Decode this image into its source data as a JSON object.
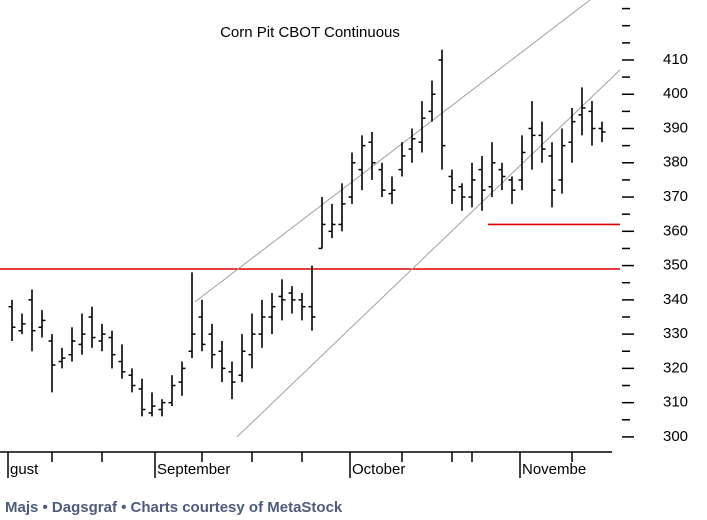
{
  "chart_data": {
    "type": "ohlc",
    "title": "Corn Pit CBOT Continuous",
    "footer": "Majs • Dagsgraf • Charts courtesy of MetaStock",
    "xlim": [
      -1.2,
      60.8
    ],
    "ylim": [
      295.6,
      427.5
    ],
    "yticks": [
      300,
      310,
      320,
      330,
      340,
      350,
      360,
      370,
      380,
      390,
      400,
      410
    ],
    "yminor_ticks": [
      305,
      315,
      325,
      335,
      345,
      355,
      365,
      375,
      385,
      395,
      405,
      415,
      420,
      425
    ],
    "xticks": [
      4,
      9,
      19,
      24,
      29,
      39,
      44,
      46,
      56
    ],
    "xlabels": [
      {
        "value": -0.4,
        "label": "gust"
      },
      {
        "value": 14.3,
        "label": "September"
      },
      {
        "value": 33.8,
        "label": "October"
      },
      {
        "value": 50.8,
        "label": "Novembe"
      }
    ],
    "color": "#000000",
    "series": [
      {
        "open": [
          338,
          331,
          340,
          332,
          328,
          322,
          324,
          327,
          335,
          328,
          329,
          322,
          318,
          314,
          307,
          308,
          310,
          316,
          325,
          335,
          330,
          325,
          319,
          318,
          324,
          330,
          335,
          341,
          342,
          340,
          338,
          355,
          360,
          362,
          370,
          378,
          386,
          378,
          371,
          378,
          384,
          386,
          395,
          410,
          376,
          373,
          370,
          378,
          373,
          378,
          375,
          375,
          390,
          388,
          382,
          375,
          386,
          394,
          395,
          390
        ],
        "high": [
          340,
          336,
          343,
          337,
          330,
          326,
          332,
          336,
          338,
          333,
          331,
          327,
          320,
          317,
          313,
          311,
          318,
          322,
          348,
          340,
          333,
          328,
          322,
          330,
          336,
          340,
          342,
          346,
          344,
          342,
          350,
          370,
          368,
          374,
          383,
          388,
          389,
          380,
          376,
          386,
          390,
          398,
          404,
          413,
          378,
          374,
          380,
          382,
          386,
          380,
          376,
          388,
          398,
          392,
          386,
          390,
          396,
          402,
          398,
          392
        ],
        "low": [
          328,
          330,
          325,
          329,
          313,
          320,
          322,
          324,
          326,
          325,
          320,
          317,
          313,
          306,
          306,
          306,
          309,
          312,
          323,
          325,
          320,
          316,
          311,
          316,
          320,
          326,
          330,
          334,
          336,
          334,
          331,
          355,
          358,
          360,
          368,
          372,
          375,
          370,
          368,
          376,
          380,
          383,
          392,
          378,
          368,
          366,
          367,
          366,
          370,
          372,
          368,
          372,
          378,
          380,
          367,
          371,
          380,
          388,
          385,
          386
        ],
        "close": [
          332,
          333,
          331,
          334,
          321,
          323,
          328,
          330,
          329,
          330,
          324,
          319,
          315,
          308,
          309,
          310,
          315,
          320,
          330,
          327,
          324,
          320,
          316,
          325,
          330,
          335,
          338,
          340,
          340,
          338,
          335,
          362,
          362,
          368,
          380,
          385,
          380,
          372,
          372,
          382,
          387,
          393,
          400,
          385,
          372,
          370,
          375,
          372,
          380,
          376,
          372,
          383,
          388,
          384,
          372,
          385,
          392,
          396,
          390,
          389
        ]
      }
    ],
    "lines": [
      {
        "color": "#e00000",
        "x": [
          -1.2,
          60.8
        ],
        "y": [
          349,
          349
        ]
      },
      {
        "color": "#e00000",
        "x": [
          47.6,
          60.8
        ],
        "y": [
          362,
          362
        ]
      },
      {
        "color": "#a0a0a0",
        "x": [
          18.3,
          57.8
        ],
        "y": [
          339.4,
          427.5
        ]
      },
      {
        "color": "#a0a0a0",
        "x": [
          22.5,
          60.8
        ],
        "y": [
          300,
          407.1
        ]
      }
    ]
  }
}
